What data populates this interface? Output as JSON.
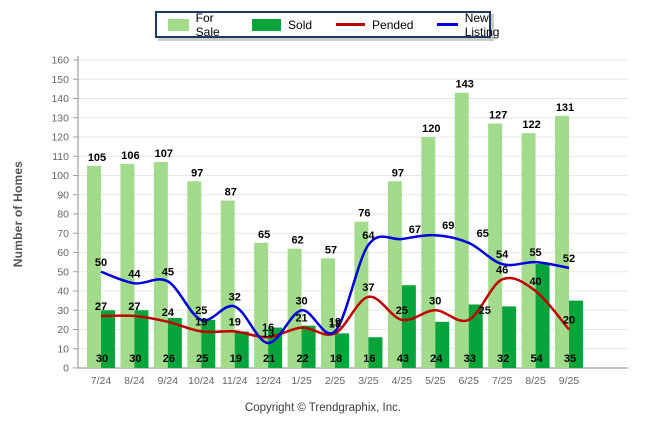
{
  "legend": {
    "items": [
      {
        "label": "For Sale",
        "type": "bar",
        "color": "#A3DB8D"
      },
      {
        "label": "Sold",
        "type": "bar",
        "color": "#07A33B"
      },
      {
        "label": "Pended",
        "type": "line",
        "color": "#C00000"
      },
      {
        "label": "New Listing",
        "type": "line",
        "color": "#0000DC"
      }
    ]
  },
  "axis": {
    "ylabel": "Number of Homes",
    "ymin": 0,
    "ymax": 160,
    "ystep": 10
  },
  "footer": {
    "text": "Copyright © Trendgraphix, Inc."
  },
  "colors": {
    "for_sale": "#A3DB8D",
    "sold": "#07A33B",
    "pended": "#C00000",
    "new_listing": "#0000DC",
    "gridline": "#E7E7E7",
    "axis_line": "#A0A0A0",
    "tick_text": "#666666",
    "value_text": "#000000"
  },
  "chart_data": {
    "type": "bar",
    "title": "",
    "xlabel": "",
    "ylabel": "Number of Homes",
    "ylim": [
      0,
      160
    ],
    "ystep": 10,
    "grid": true,
    "legend_position": "top-center",
    "categories": [
      "7/24",
      "8/24",
      "9/24",
      "10/24",
      "11/24",
      "12/24",
      "1/25",
      "2/25",
      "3/25",
      "4/25",
      "5/25",
      "6/25",
      "7/25",
      "8/25",
      "9/25"
    ],
    "series": [
      {
        "name": "For Sale",
        "type": "bar",
        "color": "#A3DB8D",
        "values": [
          105,
          106,
          107,
          97,
          87,
          65,
          62,
          57,
          76,
          97,
          120,
          143,
          127,
          122,
          131
        ]
      },
      {
        "name": "Sold",
        "type": "bar",
        "color": "#07A33B",
        "values": [
          30,
          30,
          26,
          25,
          19,
          21,
          22,
          18,
          16,
          43,
          24,
          33,
          32,
          54,
          35
        ]
      },
      {
        "name": "Pended",
        "type": "line",
        "color": "#C00000",
        "values": [
          27,
          27,
          24,
          19,
          19,
          16,
          21,
          18,
          37,
          25,
          30,
          25,
          46,
          40,
          20
        ]
      },
      {
        "name": "New Listing",
        "type": "line",
        "color": "#0000DC",
        "values": [
          50,
          44,
          45,
          25,
          32,
          13,
          30,
          19,
          64,
          67,
          69,
          65,
          54,
          55,
          52
        ]
      }
    ]
  }
}
